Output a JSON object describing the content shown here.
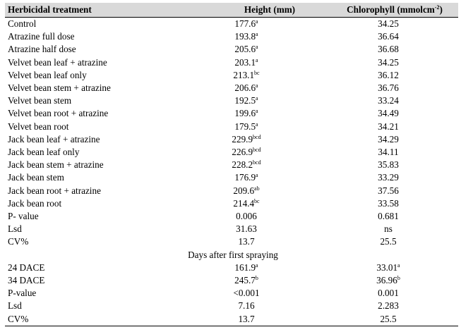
{
  "table": {
    "headers": {
      "treatment": "Herbicidal treatment",
      "height": "Height (mm)",
      "chlorophyll_base": "Chlorophyll (mmolcm",
      "chlorophyll_sup": "-2",
      "chlorophyll_close": ")"
    },
    "rows": [
      {
        "treatment": "Control",
        "height": "177.6",
        "height_sup": "a",
        "chl": "34.25",
        "chl_sup": ""
      },
      {
        "treatment": "Atrazine full dose",
        "height": "193.8",
        "height_sup": "a",
        "chl": "36.64",
        "chl_sup": ""
      },
      {
        "treatment": "Atrazine half dose",
        "height": "205.6",
        "height_sup": "a",
        "chl": "36.68",
        "chl_sup": ""
      },
      {
        "treatment": "Velvet bean leaf + atrazine",
        "height": "203.1",
        "height_sup": "a",
        "chl": "34.25",
        "chl_sup": ""
      },
      {
        "treatment": "Velvet bean leaf only",
        "height": "213.1",
        "height_sup": "bc",
        "chl": "36.12",
        "chl_sup": ""
      },
      {
        "treatment": "Velvet bean stem + atrazine",
        "height": "206.6",
        "height_sup": "a",
        "chl": "36.76",
        "chl_sup": ""
      },
      {
        "treatment": "Velvet bean stem",
        "height": "192.5",
        "height_sup": "a",
        "chl": "33.24",
        "chl_sup": ""
      },
      {
        "treatment": "Velvet bean root + atrazine",
        "height": "199.6",
        "height_sup": "a",
        "chl": "34.49",
        "chl_sup": ""
      },
      {
        "treatment": "Velvet bean root",
        "height": "179.5",
        "height_sup": "a",
        "chl": "34.21",
        "chl_sup": ""
      },
      {
        "treatment": "Jack bean leaf + atrazine",
        "height": "229.9",
        "height_sup": "bcd",
        "chl": "34.29",
        "chl_sup": ""
      },
      {
        "treatment": "Jack bean leaf only",
        "height": "226.9",
        "height_sup": "bcd",
        "chl": "34.11",
        "chl_sup": ""
      },
      {
        "treatment": "Jack bean stem + atrazine",
        "height": "228.2",
        "height_sup": "bcd",
        "chl": "35.83",
        "chl_sup": ""
      },
      {
        "treatment": "Jack bean stem",
        "height": "176.9",
        "height_sup": "a",
        "chl": "33.29",
        "chl_sup": ""
      },
      {
        "treatment": "Jack bean root + atrazine",
        "height": "209.6",
        "height_sup": "ab",
        "chl": "37.56",
        "chl_sup": ""
      },
      {
        "treatment": "Jack bean root",
        "height": "214.4",
        "height_sup": "bc",
        "chl": "33.58",
        "chl_sup": ""
      },
      {
        "treatment": "P- value",
        "height": "0.006",
        "height_sup": "",
        "chl": "0.681",
        "chl_sup": ""
      },
      {
        "treatment": "Lsd",
        "height": "31.63",
        "height_sup": "",
        "chl": "ns",
        "chl_sup": ""
      },
      {
        "treatment": "CV%",
        "height": "13.7",
        "height_sup": "",
        "chl": "25.5",
        "chl_sup": ""
      }
    ],
    "section_title": "Days after first spraying",
    "section_rows": [
      {
        "treatment": "24 DACE",
        "height": "161.9",
        "height_sup": "a",
        "chl": "33.01",
        "chl_sup": "a"
      },
      {
        "treatment": "34 DACE",
        "height": "245.7",
        "height_sup": "b",
        "chl": "36.96",
        "chl_sup": "b"
      },
      {
        "treatment": "P-value",
        "height": "<0.001",
        "height_sup": "",
        "chl": "0.001",
        "chl_sup": ""
      },
      {
        "treatment": "Lsd",
        "height": "7.16",
        "height_sup": "",
        "chl": "2.283",
        "chl_sup": ""
      },
      {
        "treatment": "CV%",
        "height": "13.7",
        "height_sup": "",
        "chl": "25.5",
        "chl_sup": ""
      }
    ]
  }
}
